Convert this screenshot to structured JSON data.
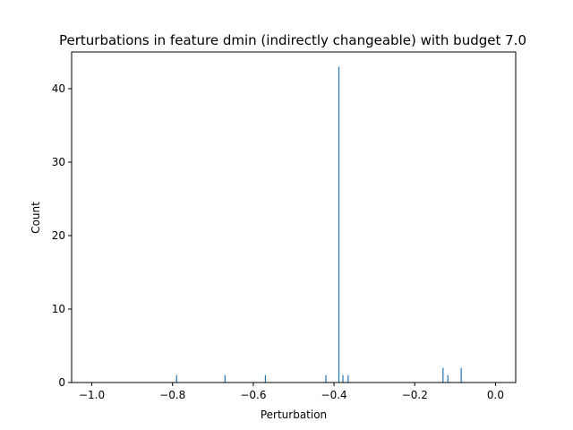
{
  "chart_data": {
    "type": "bar",
    "title": "Perturbations in feature dmin (indirectly changeable) with budget 7.0",
    "xlabel": "Perturbation",
    "ylabel": "Count",
    "xlim": [
      -1.05,
      0.05
    ],
    "ylim": [
      0,
      45
    ],
    "x_ticks": [
      -1.0,
      -0.8,
      -0.6,
      -0.4,
      -0.2,
      0.0
    ],
    "x_tick_labels": [
      "−1.0",
      "−0.8",
      "−0.6",
      "−0.4",
      "−0.2",
      "0.0"
    ],
    "y_ticks": [
      0,
      10,
      20,
      30,
      40
    ],
    "y_tick_labels": [
      "0",
      "10",
      "20",
      "30",
      "40"
    ],
    "bar_color": "#1f77b4",
    "grid": false,
    "series": [
      {
        "values": [
          {
            "x": -0.79,
            "count": 1
          },
          {
            "x": -0.67,
            "count": 1
          },
          {
            "x": -0.57,
            "count": 1
          },
          {
            "x": -0.42,
            "count": 1
          },
          {
            "x": -0.388,
            "count": 43
          },
          {
            "x": -0.378,
            "count": 1
          },
          {
            "x": -0.365,
            "count": 1
          },
          {
            "x": -0.13,
            "count": 2
          },
          {
            "x": -0.118,
            "count": 1
          },
          {
            "x": -0.085,
            "count": 2
          }
        ]
      }
    ]
  }
}
